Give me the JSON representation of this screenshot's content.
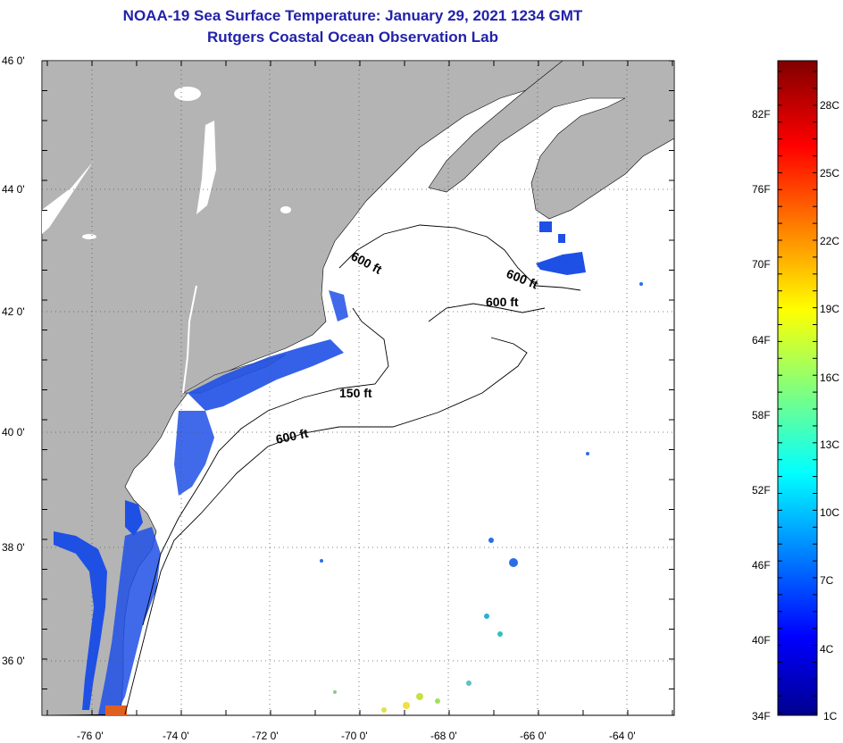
{
  "title_line1": "NOAA-19 Sea Surface Temperature:  January 29, 2021 1234 GMT",
  "title_line2": "Rutgers Coastal Ocean Observation Lab",
  "lat_labels": [
    "46 0'",
    "44 0'",
    "42 0'",
    "40 0'",
    "38 0'",
    "36 0'"
  ],
  "lon_labels": [
    "-76 0'",
    "-74 0'",
    "-72 0'",
    "-70 0'",
    "-68 0'",
    "-66 0'",
    "-64 0'"
  ],
  "isobath_labels": [
    "600 ft",
    "600 ft",
    "600 ft",
    "150 ft",
    "600 ft"
  ],
  "colorbar": {
    "fahrenheit": [
      "82F",
      "76F",
      "70F",
      "64F",
      "58F",
      "52F",
      "46F",
      "40F",
      "34F"
    ],
    "celsius": [
      "28C",
      "25C",
      "22C",
      "19C",
      "16C",
      "13C",
      "10C",
      "7C",
      "4C",
      "1C"
    ]
  },
  "colors": {
    "title": "#2222aa",
    "land": "#b4b4b4",
    "ocean": "#ffffff",
    "cold_water": "#1e50e6"
  }
}
